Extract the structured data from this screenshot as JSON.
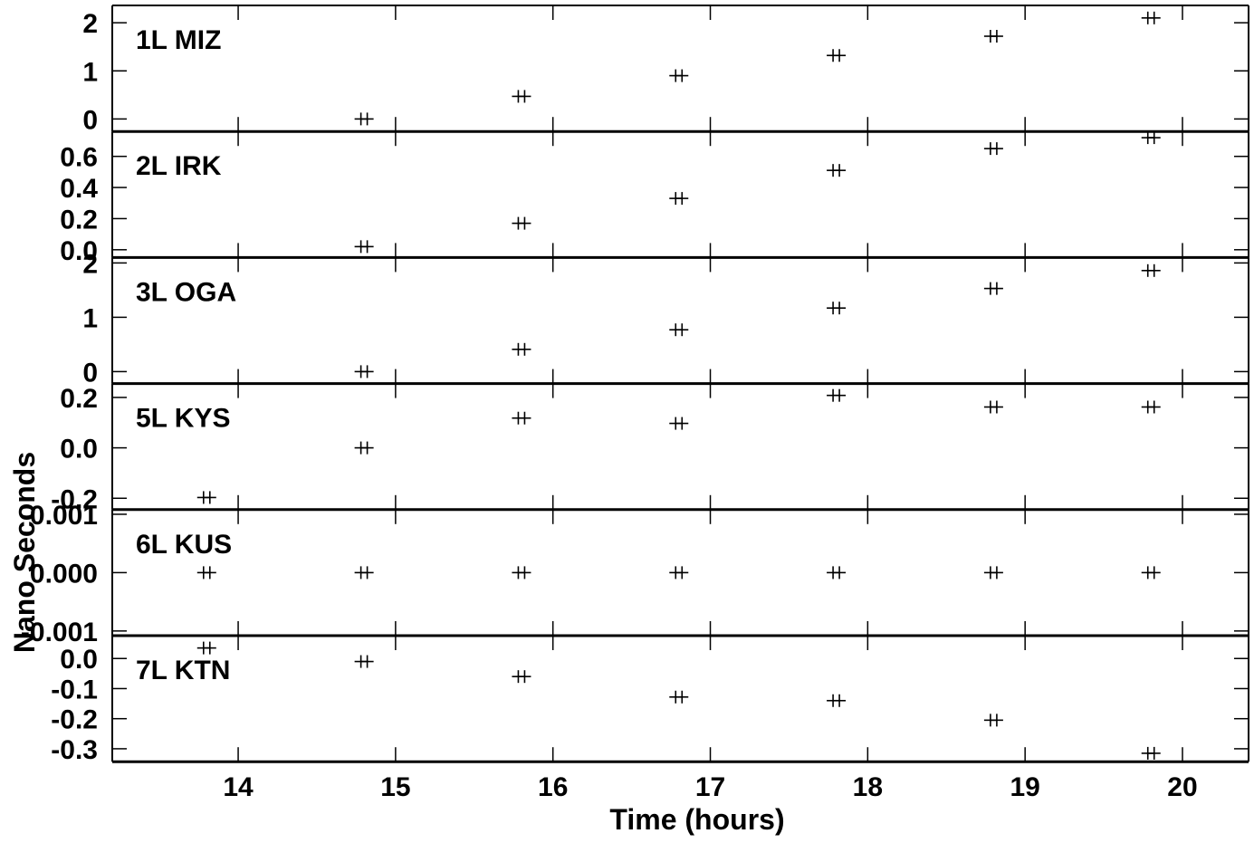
{
  "chart_data": {
    "type": "scatter",
    "xlabel": "Time (hours)",
    "ylabel": "Nano Seconds",
    "xlim": [
      13.2,
      20.42
    ],
    "xticks": [
      14,
      15,
      16,
      17,
      18,
      19,
      20
    ],
    "marker": "+",
    "panels": [
      {
        "label": "1L MIZ",
        "ylim": [
          -0.26,
          2.36
        ],
        "yticks": [
          {
            "v": 0,
            "t": "0"
          },
          {
            "v": 1,
            "t": "1"
          },
          {
            "v": 2,
            "t": "2"
          }
        ],
        "points": [
          [
            14.8,
            0.0
          ],
          [
            15.8,
            0.47
          ],
          [
            16.8,
            0.9
          ],
          [
            17.8,
            1.32
          ],
          [
            18.8,
            1.72
          ],
          [
            19.8,
            2.1
          ]
        ]
      },
      {
        "label": "2L IRK",
        "ylim": [
          -0.05,
          0.76
        ],
        "yticks": [
          {
            "v": 0,
            "t": "0.0"
          },
          {
            "v": 0.2,
            "t": "0.2"
          },
          {
            "v": 0.4,
            "t": "0.4"
          },
          {
            "v": 0.6,
            "t": "0.6"
          }
        ],
        "points": [
          [
            14.8,
            0.02
          ],
          [
            15.8,
            0.17
          ],
          [
            16.8,
            0.33
          ],
          [
            17.8,
            0.51
          ],
          [
            18.8,
            0.65
          ],
          [
            19.8,
            0.72
          ]
        ]
      },
      {
        "label": "3L OGA",
        "ylim": [
          -0.22,
          2.1
        ],
        "yticks": [
          {
            "v": 0,
            "t": "0"
          },
          {
            "v": 1,
            "t": "1"
          },
          {
            "v": 2,
            "t": "2"
          }
        ],
        "points": [
          [
            14.8,
            0.0
          ],
          [
            15.8,
            0.41
          ],
          [
            16.8,
            0.77
          ],
          [
            17.8,
            1.17
          ],
          [
            18.8,
            1.53
          ],
          [
            19.8,
            1.86
          ]
        ]
      },
      {
        "label": "5L KYS",
        "ylim": [
          -0.245,
          0.255
        ],
        "yticks": [
          {
            "v": -0.2,
            "t": "-0.2"
          },
          {
            "v": 0,
            "t": "0.0"
          },
          {
            "v": 0.2,
            "t": "0.2"
          }
        ],
        "points": [
          [
            13.8,
            -0.197
          ],
          [
            14.8,
            0.0
          ],
          [
            15.8,
            0.118
          ],
          [
            16.8,
            0.097
          ],
          [
            17.8,
            0.208
          ],
          [
            18.8,
            0.162
          ],
          [
            19.8,
            0.162
          ]
        ]
      },
      {
        "label": "6L KUS",
        "ylim": [
          -0.00108,
          0.00108
        ],
        "yticks": [
          {
            "v": -0.001,
            "t": "-0.001"
          },
          {
            "v": 0,
            "t": "0.000"
          },
          {
            "v": 0.001,
            "t": "0.001"
          }
        ],
        "points": [
          [
            13.8,
            0.0
          ],
          [
            14.8,
            0.0
          ],
          [
            15.8,
            0.0
          ],
          [
            16.8,
            0.0
          ],
          [
            17.8,
            0.0
          ],
          [
            18.8,
            0.0
          ],
          [
            19.8,
            0.0
          ]
        ]
      },
      {
        "label": "7L KTN",
        "ylim": [
          -0.343,
          0.076
        ],
        "yticks": [
          {
            "v": -0.3,
            "t": "-0.3"
          },
          {
            "v": -0.2,
            "t": "-0.2"
          },
          {
            "v": -0.1,
            "t": "-0.1"
          },
          {
            "v": 0,
            "t": "0.0"
          }
        ],
        "points": [
          [
            13.8,
            0.035
          ],
          [
            14.8,
            -0.01
          ],
          [
            15.8,
            -0.06
          ],
          [
            16.8,
            -0.128
          ],
          [
            17.8,
            -0.14
          ],
          [
            18.8,
            -0.205
          ],
          [
            19.8,
            -0.315
          ]
        ]
      }
    ]
  }
}
